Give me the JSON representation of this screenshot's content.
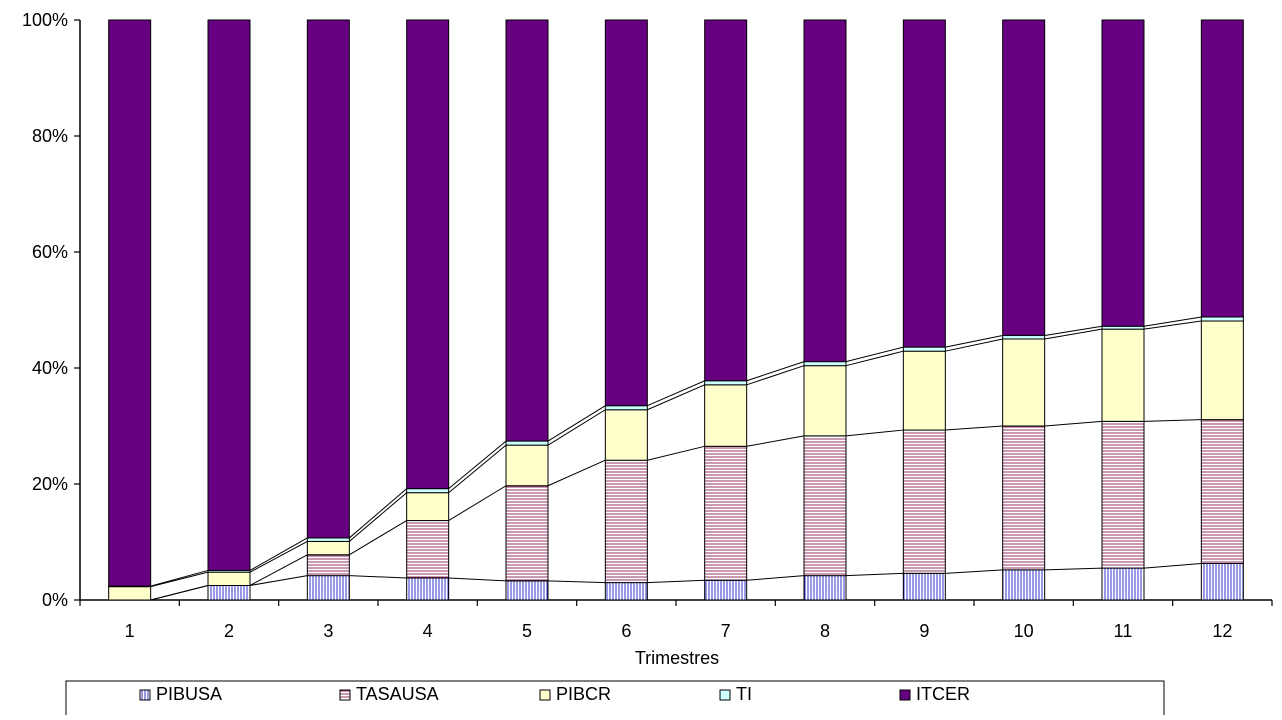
{
  "chart_data": {
    "type": "bar",
    "stacked": true,
    "normalized": true,
    "xlabel": "Trimestres",
    "ylabel": "",
    "ylim": [
      0,
      100
    ],
    "y_ticks": [
      "0%",
      "20%",
      "40%",
      "60%",
      "80%",
      "100%"
    ],
    "categories": [
      "1",
      "2",
      "3",
      "4",
      "5",
      "6",
      "7",
      "8",
      "9",
      "10",
      "11",
      "12"
    ],
    "series": [
      {
        "name": "PIBUSA",
        "color": "#9999ff",
        "pattern": "vertical-lines",
        "values": [
          0,
          2.5,
          4.2,
          3.8,
          3.3,
          3.0,
          3.4,
          4.2,
          4.6,
          5.2,
          5.5,
          6.3
        ]
      },
      {
        "name": "TASAUSA",
        "color": "#993366",
        "pattern": "horizontal-lines",
        "values": [
          0,
          0,
          3.6,
          9.9,
          16.4,
          21.1,
          23.1,
          24.1,
          24.7,
          24.8,
          25.3,
          24.8
        ]
      },
      {
        "name": "PIBCR",
        "color": "#ffffcc",
        "pattern": "solid",
        "values": [
          2.3,
          2.3,
          2.3,
          4.8,
          7.0,
          8.7,
          10.6,
          12.1,
          13.6,
          15.0,
          15.9,
          17.0
        ]
      },
      {
        "name": "TI",
        "color": "#ccffff",
        "pattern": "solid",
        "values": [
          0.1,
          0.3,
          0.6,
          0.7,
          0.7,
          0.7,
          0.7,
          0.7,
          0.7,
          0.6,
          0.5,
          0.7
        ]
      },
      {
        "name": "ITCER",
        "color": "#660080",
        "pattern": "solid",
        "values": [
          97.6,
          94.9,
          89.3,
          80.8,
          72.6,
          66.5,
          62.2,
          58.9,
          56.4,
          54.4,
          52.8,
          51.2
        ]
      }
    ],
    "series_lines": true,
    "legend_position": "bottom",
    "grid": false
  }
}
